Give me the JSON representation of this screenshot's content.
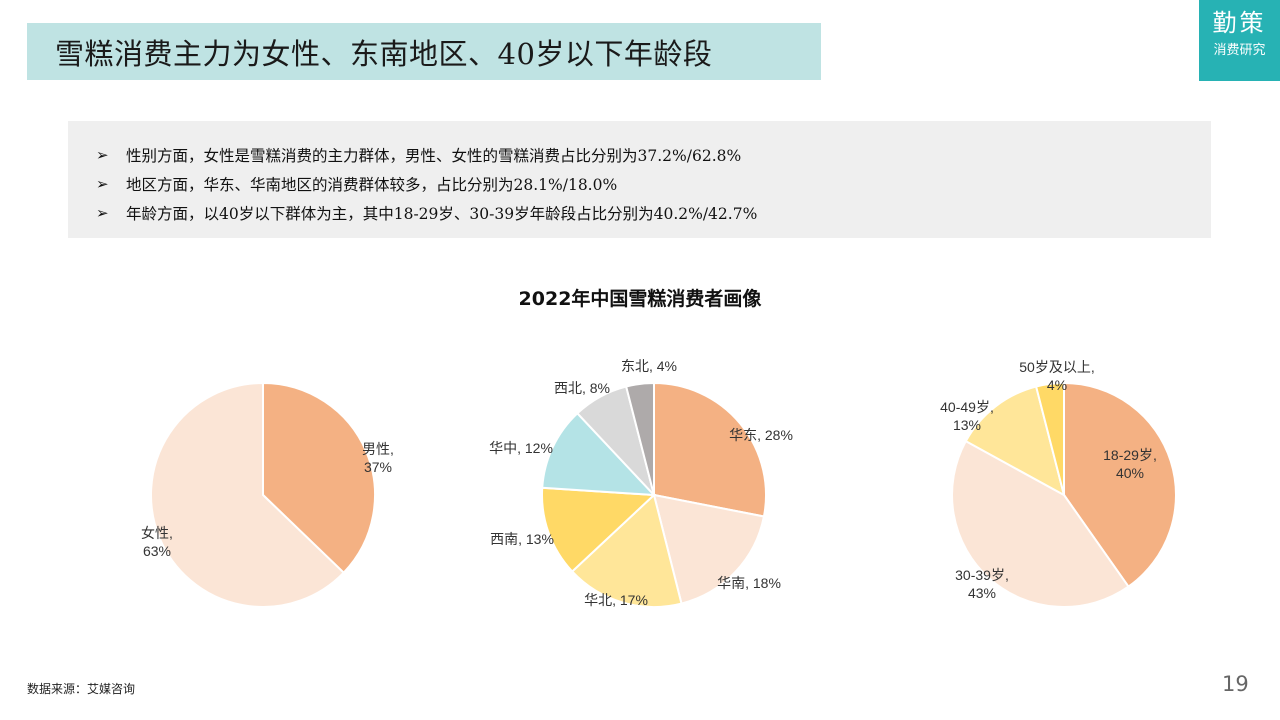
{
  "header": {
    "title": "雪糕消费主力为女性、东南地区、40岁以下年龄段"
  },
  "logo": {
    "main": "勤策",
    "sub": "消费研究"
  },
  "summary": {
    "bullet_icon": "➢",
    "bullets": [
      "性别方面，女性是雪糕消费的主力群体，男性、女性的雪糕消费占比分别为37.2%/62.8%",
      "地区方面，华东、华南地区的消费群体较多，占比分别为28.1%/18.0%",
      "年龄方面，以40岁以下群体为主，其中18-29岁、30-39岁年龄段占比分别为40.2%/42.7%"
    ]
  },
  "chart_title": "2022年中国雪糕消费者画像",
  "chart_data": [
    {
      "type": "pie",
      "title": "",
      "slices": [
        {
          "label": "男性,",
          "pct": "37%",
          "value": 37.2,
          "color": "#f4b183"
        },
        {
          "label": "女性,",
          "pct": "63%",
          "value": 62.8,
          "color": "#fbe5d6"
        }
      ]
    },
    {
      "type": "pie",
      "title": "",
      "slices": [
        {
          "label": "华东, 28%",
          "value": 28.1,
          "color": "#f4b183"
        },
        {
          "label": "华南, 18%",
          "value": 18.0,
          "color": "#fbe5d6"
        },
        {
          "label": "华北, 17%",
          "value": 17,
          "color": "#ffe699"
        },
        {
          "label": "西南, 13%",
          "value": 13,
          "color": "#ffd966"
        },
        {
          "label": "华中, 12%",
          "value": 12,
          "color": "#b4e3e6"
        },
        {
          "label": "西北, 8%",
          "value": 8,
          "color": "#d9d9d9"
        },
        {
          "label": "东北, 4%",
          "value": 4,
          "color": "#aeaaaa"
        }
      ]
    },
    {
      "type": "pie",
      "title": "",
      "slices": [
        {
          "label": "18-29岁,",
          "pct": "40%",
          "value": 40.2,
          "color": "#f4b183"
        },
        {
          "label": "30-39岁,",
          "pct": "43%",
          "value": 42.7,
          "color": "#fbe5d6"
        },
        {
          "label": "40-49岁,",
          "pct": "13%",
          "value": 13,
          "color": "#ffe699"
        },
        {
          "label": "50岁及以上,",
          "pct": "4%",
          "value": 4,
          "color": "#ffd966"
        }
      ]
    }
  ],
  "footer": {
    "source": "数据来源：艾媒咨询",
    "page_number": "19"
  }
}
